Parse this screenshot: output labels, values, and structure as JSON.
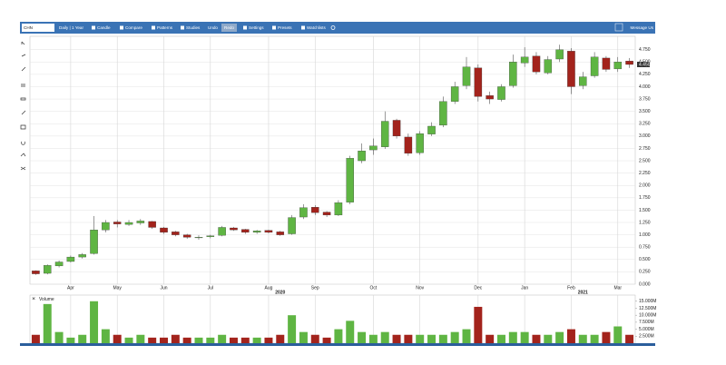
{
  "toolbar": {
    "symbol": "CHN",
    "items": [
      "Daily | 1 Year",
      "Candle",
      "Compare",
      "Patterns",
      "Studies",
      "Undo",
      "Redo",
      "Settings",
      "Presets",
      "Watchlists"
    ],
    "message": "Message Us"
  },
  "chart_data": {
    "type": "candlestick",
    "categories": [
      null,
      null,
      null,
      "Apr",
      null,
      null,
      null,
      "May",
      null,
      null,
      null,
      "Jun",
      null,
      null,
      null,
      "Jul",
      null,
      null,
      null,
      null,
      "Aug",
      null,
      null,
      null,
      "Sep",
      null,
      null,
      null,
      null,
      "Oct",
      null,
      null,
      null,
      "Nov",
      null,
      null,
      null,
      null,
      "Dec",
      null,
      null,
      null,
      "Jan",
      null,
      null,
      null,
      "Feb",
      null,
      null,
      null,
      "Mar",
      null
    ],
    "year_categories": [
      null,
      null,
      null,
      null,
      null,
      null,
      null,
      null,
      null,
      null,
      null,
      null,
      null,
      null,
      null,
      null,
      null,
      null,
      null,
      null,
      null,
      "2020",
      null,
      null,
      null,
      null,
      null,
      null,
      null,
      null,
      null,
      null,
      null,
      null,
      null,
      null,
      null,
      null,
      null,
      null,
      null,
      null,
      null,
      null,
      null,
      null,
      null,
      "2021",
      null,
      null,
      null,
      null
    ],
    "open": [
      0.27,
      0.22,
      0.37,
      0.46,
      0.55,
      0.62,
      1.1,
      1.26,
      1.21,
      1.24,
      1.27,
      1.14,
      1.06,
      1.0,
      0.94,
      0.96,
      0.99,
      1.14,
      1.11,
      1.05,
      1.09,
      1.06,
      1.02,
      1.36,
      1.56,
      1.46,
      1.4,
      1.66,
      2.5,
      2.72,
      2.78,
      3.32,
      2.98,
      2.66,
      3.04,
      3.22,
      3.7,
      4.02,
      4.38,
      3.82,
      3.74,
      4.02,
      4.48,
      4.62,
      4.28,
      4.56,
      4.72,
      4.02,
      4.22,
      4.58,
      4.36,
      4.52
    ],
    "high": [
      0.28,
      0.4,
      0.48,
      0.58,
      0.63,
      1.38,
      1.3,
      1.3,
      1.3,
      1.32,
      1.28,
      1.16,
      1.08,
      1.02,
      0.99,
      1.0,
      1.18,
      1.16,
      1.12,
      1.1,
      1.1,
      1.08,
      1.4,
      1.62,
      1.6,
      1.48,
      1.7,
      2.6,
      2.85,
      2.95,
      3.5,
      3.35,
      3.05,
      3.1,
      3.28,
      3.8,
      4.1,
      4.6,
      4.45,
      3.9,
      4.05,
      4.65,
      4.8,
      4.7,
      4.62,
      4.85,
      4.78,
      4.3,
      4.7,
      4.62,
      4.6,
      4.58
    ],
    "low": [
      0.19,
      0.2,
      0.34,
      0.44,
      0.52,
      0.6,
      1.05,
      1.15,
      1.18,
      1.2,
      1.12,
      1.02,
      0.97,
      0.92,
      0.9,
      0.93,
      0.97,
      1.08,
      1.02,
      1.02,
      1.03,
      0.98,
      1.0,
      1.32,
      1.4,
      1.36,
      1.38,
      1.62,
      2.45,
      2.62,
      2.74,
      2.95,
      2.6,
      2.62,
      3.0,
      3.18,
      3.65,
      3.95,
      3.7,
      3.65,
      3.7,
      3.98,
      4.4,
      4.25,
      4.25,
      4.5,
      3.85,
      3.95,
      4.18,
      4.3,
      4.3,
      4.38
    ],
    "close": [
      0.21,
      0.38,
      0.45,
      0.55,
      0.6,
      1.1,
      1.25,
      1.22,
      1.25,
      1.28,
      1.15,
      1.05,
      1.0,
      0.95,
      0.95,
      0.98,
      1.15,
      1.1,
      1.05,
      1.08,
      1.05,
      1.0,
      1.35,
      1.55,
      1.45,
      1.4,
      1.65,
      2.55,
      2.7,
      2.8,
      3.3,
      3.0,
      2.65,
      3.05,
      3.2,
      3.7,
      4.0,
      4.4,
      3.8,
      3.75,
      4.0,
      4.5,
      4.6,
      4.3,
      4.55,
      4.75,
      4.0,
      4.2,
      4.6,
      4.35,
      4.5,
      4.45
    ],
    "last_label": "4.450",
    "up_color": "#5fb543",
    "down_color": "#a3231c",
    "ylim": [
      0,
      5.02
    ],
    "yticks": [
      {
        "value": 0,
        "label": "0.000"
      },
      {
        "value": 0.25,
        "label": "0.250"
      },
      {
        "value": 0.5,
        "label": "0.500"
      },
      {
        "value": 0.75,
        "label": "0.750"
      },
      {
        "value": 1,
        "label": "1.000"
      },
      {
        "value": 1.25,
        "label": "1.250"
      },
      {
        "value": 1.5,
        "label": "1.500"
      },
      {
        "value": 1.75,
        "label": "1.750"
      },
      {
        "value": 2,
        "label": "2.000"
      },
      {
        "value": 2.25,
        "label": "2.250"
      },
      {
        "value": 2.5,
        "label": "2.500"
      },
      {
        "value": 2.75,
        "label": "2.750"
      },
      {
        "value": 3,
        "label": "3.000"
      },
      {
        "value": 3.25,
        "label": "3.250"
      },
      {
        "value": 3.5,
        "label": "3.500"
      },
      {
        "value": 3.75,
        "label": "3.750"
      },
      {
        "value": 4,
        "label": "4.000"
      },
      {
        "value": 4.25,
        "label": "4.250"
      },
      {
        "value": 4.5,
        "label": "4.500"
      },
      {
        "value": 4.75,
        "label": "4.750"
      }
    ],
    "grid": true,
    "volume": {
      "name": "Volume",
      "values": [
        3000000,
        14000000,
        4000000,
        2000000,
        3000000,
        15000000,
        5000000,
        3000000,
        2000000,
        3000000,
        2000000,
        2000000,
        3000000,
        2000000,
        2000000,
        2000000,
        3000000,
        2000000,
        2000000,
        2000000,
        2000000,
        3000000,
        10000000,
        4000000,
        3000000,
        2000000,
        5000000,
        8000000,
        4000000,
        3000000,
        4000000,
        3000000,
        3000000,
        3000000,
        3000000,
        3000000,
        4000000,
        5000000,
        13000000,
        3000000,
        3000000,
        4000000,
        4000000,
        3000000,
        3000000,
        4000000,
        5000000,
        3000000,
        3000000,
        4000000,
        6000000,
        3000000
      ],
      "ylim": [
        0,
        17200000
      ],
      "yticks": [
        {
          "value": 2500000,
          "label": "2.500M"
        },
        {
          "value": 5000000,
          "label": "5.000M"
        },
        {
          "value": 7500000,
          "label": "7.500M"
        },
        {
          "value": 10000000,
          "label": "10.000M"
        },
        {
          "value": 12500000,
          "label": "12.500M"
        },
        {
          "value": 15000000,
          "label": "15.000M"
        }
      ]
    }
  }
}
